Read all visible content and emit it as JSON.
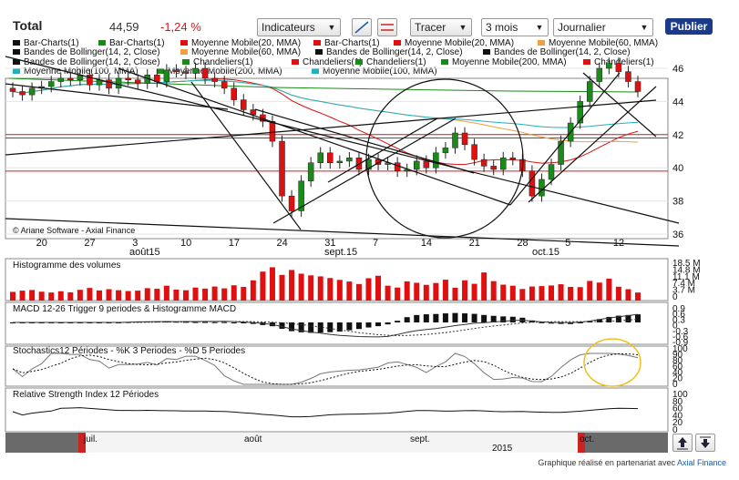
{
  "header": {
    "title": "Total",
    "price": "44,59",
    "change": "-1,24 %",
    "indicators_label": "Indicateurs",
    "tracer_label": "Tracer",
    "period_value": "3 mois",
    "frequency_value": "Journalier",
    "publish_label": "Publier"
  },
  "legend": [
    {
      "text": "Bar-Charts(1)",
      "color": "#111111"
    },
    {
      "text": "Bar-Charts(1)",
      "color": "#1a8a1a"
    },
    {
      "text": "Moyenne Mobile(20, MMA)",
      "color": "#e01010"
    },
    {
      "text": "Bar-Charts(1)",
      "color": "#e01010"
    },
    {
      "text": "Moyenne Mobile(20, MMA)",
      "color": "#e01010"
    },
    {
      "text": "Moyenne Mobile(60, MMA)",
      "color": "#f0a040"
    },
    {
      "text": "Bandes de Bollinger(14, 2, Close)",
      "color": "#111111"
    },
    {
      "text": "Moyenne Mobile(60, MMA)",
      "color": "#f0a040"
    },
    {
      "text": "Bandes de Bollinger(14, 2, Close)",
      "color": "#111111"
    },
    {
      "text": "Bandes de Bollinger(14, 2, Close)",
      "color": "#111111"
    },
    {
      "text": "Bandes de Bollinger(14, 2, Close)",
      "color": "#111111"
    },
    {
      "text": "Chandeliers(1)",
      "color": "#1a8a1a"
    },
    {
      "text": "Chandeliers(1)",
      "color": "#e01010"
    },
    {
      "text": "Chandeliers(1)",
      "color": "#1a8a1a"
    },
    {
      "text": "Moyenne Mobile(200, MMA)",
      "color": "#1a8a1a"
    },
    {
      "text": "Chandeliers(1)",
      "color": "#e01010"
    },
    {
      "text": "Moyenne Mobile(100, MMA)",
      "color": "#20b0c0"
    },
    {
      "text": "Moyenne Mobile(200, MMA)",
      "color": "#1a8a1a"
    },
    {
      "text": "Moyenne Mobile(100, MMA)",
      "color": "#20b0c0"
    }
  ],
  "watermark": "© Ariane Software - Axial Finance",
  "axes": {
    "price_ticks": [
      "36",
      "38",
      "40",
      "42",
      "44",
      "46"
    ],
    "day_ticks": [
      "20",
      "27",
      "3",
      "10",
      "17",
      "24",
      "31",
      "7",
      "14",
      "21",
      "28",
      "5",
      "12"
    ],
    "month_labels": [
      "août15",
      "sept.15",
      "oct.15"
    ],
    "volume_ticks": [
      "18.5 M",
      "14.8 M",
      "11.1 M",
      "7.4 M",
      "3.7 M",
      "0"
    ],
    "macd_ticks": [
      "0.9",
      "0.6",
      "0.3",
      "0",
      "-0.3",
      "-0.6",
      "-0.9"
    ],
    "stoch_ticks": [
      "100",
      "90",
      "80",
      "60",
      "40",
      "20",
      "0"
    ],
    "rsi_ticks": [
      "100",
      "80",
      "60",
      "40",
      "20",
      "0"
    ],
    "nav_months": [
      "juil.",
      "août",
      "sept.",
      "oct."
    ],
    "nav_year": "2015"
  },
  "panels": {
    "volume_title": "Histogramme des volumes",
    "macd_title": "MACD 12-26   Trigger 9 periodes & Histogramme MACD",
    "stoch_title": "Stochastics12 Périodes   - %K 3 Periodes   - %D 5 Periodes",
    "rsi_title": "Relative Strength Index 12 Périodes"
  },
  "footer": {
    "text": "Graphique réalisé en partenariat avec",
    "brand": "Axial Finance"
  },
  "colors": {
    "up": "#1a8a1a",
    "down": "#e01010",
    "ma60": "#f0a040",
    "ma100": "#20b0c0",
    "ma200": "#1a8a1a",
    "volume": "#e01010"
  },
  "chart_data": {
    "type": "candlestick",
    "price_range": [
      35.8,
      47.2
    ],
    "dates": [
      "15",
      "16",
      "17",
      "20",
      "21",
      "22",
      "23",
      "24",
      "27",
      "28",
      "29",
      "30",
      "31",
      "3",
      "4",
      "5",
      "6",
      "7",
      "10",
      "11",
      "12",
      "13",
      "14",
      "17",
      "18",
      "19",
      "20",
      "21",
      "24",
      "25",
      "26",
      "27",
      "28",
      "31",
      "1",
      "2",
      "3",
      "4",
      "7",
      "8",
      "9",
      "10",
      "11",
      "14",
      "15",
      "16",
      "17",
      "18",
      "21",
      "22",
      "23",
      "24",
      "25",
      "28",
      "29",
      "30",
      "1",
      "2",
      "5",
      "6",
      "7",
      "8",
      "9",
      "12",
      "13",
      "14"
    ],
    "closes": [
      44.6,
      44.4,
      44.8,
      44.9,
      45.2,
      45.4,
      45.3,
      45.6,
      45.0,
      45.3,
      44.8,
      45.4,
      45.3,
      45.1,
      45.6,
      45.2,
      45.9,
      45.8,
      45.7,
      46.0,
      45.4,
      45.2,
      44.8,
      44.1,
      43.5,
      43.2,
      42.8,
      41.6,
      38.3,
      37.4,
      39.2,
      40.3,
      40.9,
      40.3,
      40.4,
      40.6,
      39.9,
      40.5,
      40.2,
      40.3,
      39.8,
      39.9,
      40.4,
      40.0,
      40.9,
      41.2,
      42.1,
      41.4,
      40.5,
      40.1,
      39.9,
      40.6,
      40.5,
      39.8,
      38.3,
      39.3,
      40.2,
      41.6,
      42.7,
      44.0,
      45.2,
      46.0,
      46.3,
      45.8,
      45.2,
      44.6
    ],
    "volumes_m": [
      4.2,
      4.8,
      5.1,
      4.3,
      3.9,
      4.5,
      4.0,
      5.2,
      6.1,
      4.9,
      5.5,
      5.0,
      4.6,
      4.8,
      6.0,
      5.7,
      7.2,
      5.3,
      5.0,
      6.3,
      5.8,
      6.8,
      5.9,
      7.4,
      6.6,
      9.8,
      14.0,
      16.1,
      12.4,
      14.8,
      13.0,
      12.2,
      11.7,
      10.9,
      10.0,
      9.2,
      8.0,
      10.8,
      12.0,
      7.2,
      6.3,
      9.3,
      8.6,
      7.6,
      8.5,
      10.1,
      6.2,
      9.8,
      8.1,
      13.6,
      9.4,
      7.7,
      7.2,
      5.6,
      6.8,
      7.0,
      7.3,
      7.9,
      6.6,
      6.5,
      9.5,
      8.7,
      10.6,
      6.7,
      5.5,
      3.9
    ],
    "stochastic_k_last": 78,
    "rsi_last": 55
  }
}
